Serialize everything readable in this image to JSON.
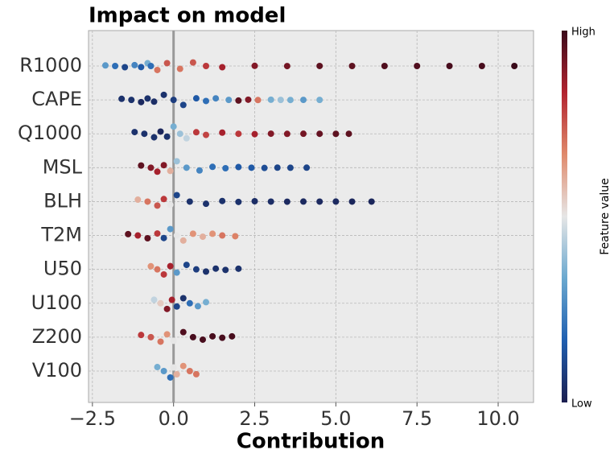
{
  "chart_data": {
    "type": "beeswarm",
    "title": "Impact on model",
    "x_label": "Contribution",
    "colorbar": {
      "label": "Feature value",
      "high": "High",
      "low": "Low",
      "colors": [
        "#1b1e4f",
        "#1f5fb0",
        "#6aa8cf",
        "#e6e6e6",
        "#e08a6c",
        "#b2232f",
        "#3a0a1a"
      ]
    },
    "xlim": [
      -2.62,
      11.09
    ],
    "xticks": [
      {
        "value": -2.5,
        "label": "−2.5"
      },
      {
        "value": 0,
        "label": "0.0"
      },
      {
        "value": 2.5,
        "label": "2.5"
      },
      {
        "value": 5,
        "label": "5.0"
      },
      {
        "value": 7.5,
        "label": "7.5"
      },
      {
        "value": 10,
        "label": "10.0"
      }
    ],
    "grid": true,
    "series": [
      {
        "name": "R1000",
        "values": [
          -2.1,
          -1.8,
          -1.5,
          -1.2,
          -1,
          -0.8,
          -0.7,
          -0.5,
          -0.2,
          0.2,
          0.6,
          1,
          1.5,
          2.5,
          3.5,
          4.5,
          5.5,
          6.5,
          7.5,
          8.5,
          9.5,
          10.5
        ],
        "feature_values": [
          0.3,
          0.2,
          0.1,
          0.25,
          0.15,
          0.35,
          0.2,
          0.7,
          0.75,
          0.7,
          0.75,
          0.8,
          0.85,
          0.9,
          0.92,
          0.95,
          0.95,
          0.97,
          0.97,
          0.98,
          0.98,
          1
        ]
      },
      {
        "name": "CAPE",
        "values": [
          -1.6,
          -1.3,
          -1,
          -0.8,
          -0.6,
          -0.3,
          0,
          0.3,
          0.7,
          1,
          1.3,
          1.7,
          2,
          2.3,
          2.6,
          3,
          3.3,
          3.6,
          4,
          4.5
        ],
        "feature_values": [
          0.05,
          0.05,
          0.03,
          0.05,
          0.04,
          0.05,
          0.08,
          0.1,
          0.15,
          0.2,
          0.25,
          0.3,
          0.95,
          0.9,
          0.7,
          0.35,
          0.4,
          0.35,
          0.3,
          0.35
        ]
      },
      {
        "name": "Q1000",
        "values": [
          -1.2,
          -0.9,
          -0.6,
          -0.4,
          -0.2,
          0,
          0.2,
          0.4,
          0.7,
          1,
          1.5,
          2,
          2.5,
          3,
          3.5,
          4,
          4.5,
          5,
          5.4
        ],
        "feature_values": [
          0.05,
          0.05,
          0.05,
          0.02,
          0.05,
          0.35,
          0.4,
          0.45,
          0.8,
          0.78,
          0.85,
          0.8,
          0.85,
          0.9,
          0.9,
          0.92,
          0.94,
          0.95,
          0.95
        ]
      },
      {
        "name": "MSL",
        "values": [
          -1,
          -0.7,
          -0.5,
          -0.3,
          -0.1,
          0.1,
          0.4,
          0.8,
          1.2,
          1.6,
          2,
          2.4,
          2.8,
          3.2,
          3.6,
          4.1
        ],
        "feature_values": [
          0.95,
          0.9,
          0.85,
          0.9,
          0.6,
          0.4,
          0.3,
          0.25,
          0.2,
          0.2,
          0.15,
          0.15,
          0.12,
          0.1,
          0.1,
          0.1
        ]
      },
      {
        "name": "BLH",
        "values": [
          -1.1,
          -0.8,
          -0.5,
          -0.3,
          -0.1,
          0.1,
          0.5,
          1,
          1.5,
          2,
          2.5,
          3,
          3.5,
          4,
          4.5,
          5,
          5.5,
          6.1
        ],
        "feature_values": [
          0.6,
          0.7,
          0.75,
          0.8,
          0.5,
          0.1,
          0.05,
          0.05,
          0.05,
          0.05,
          0.04,
          0.04,
          0.03,
          0.03,
          0.03,
          0.03,
          0.02,
          0.02
        ]
      },
      {
        "name": "T2M",
        "values": [
          -1.4,
          -1.1,
          -0.8,
          -0.5,
          -0.3,
          -0.1,
          0.1,
          0.3,
          0.6,
          0.9,
          1.2,
          1.5,
          1.9
        ],
        "feature_values": [
          0.95,
          0.85,
          0.95,
          0.8,
          0.1,
          0.3,
          0.5,
          0.6,
          0.65,
          0.6,
          0.65,
          0.7,
          0.68
        ]
      },
      {
        "name": "U50",
        "values": [
          -0.7,
          -0.5,
          -0.3,
          -0.1,
          0.1,
          0.4,
          0.7,
          1,
          1.3,
          1.6,
          2
        ],
        "feature_values": [
          0.65,
          0.7,
          0.8,
          0.85,
          0.3,
          0.1,
          0.08,
          0.05,
          0.05,
          0.05,
          0.05
        ]
      },
      {
        "name": "U100",
        "values": [
          -0.6,
          -0.4,
          -0.2,
          -0.05,
          0.1,
          0.3,
          0.5,
          0.75,
          1
        ],
        "feature_values": [
          0.45,
          0.55,
          0.9,
          0.85,
          0.1,
          0.05,
          0.2,
          0.3,
          0.35
        ]
      },
      {
        "name": "Z200",
        "values": [
          -1,
          -0.7,
          -0.4,
          -0.2,
          0,
          0.3,
          0.6,
          0.9,
          1.2,
          1.5,
          1.8
        ],
        "feature_values": [
          0.8,
          0.75,
          0.7,
          0.65,
          0.5,
          0.97,
          0.98,
          0.98,
          0.98,
          0.98,
          0.98
        ]
      },
      {
        "name": "V100",
        "values": [
          -0.5,
          -0.3,
          -0.1,
          0,
          0.1,
          0.3,
          0.5,
          0.7
        ],
        "feature_values": [
          0.35,
          0.3,
          0.2,
          0.5,
          0.6,
          0.65,
          0.7,
          0.7
        ]
      }
    ]
  }
}
